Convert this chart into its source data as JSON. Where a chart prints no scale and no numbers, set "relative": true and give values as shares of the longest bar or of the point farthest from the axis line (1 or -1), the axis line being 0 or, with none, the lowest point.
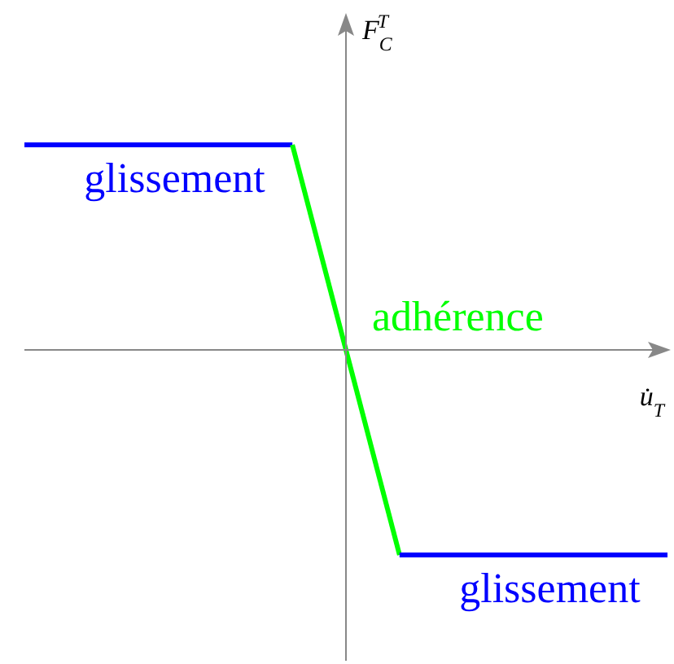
{
  "chart_data": {
    "type": "line",
    "relative": true,
    "xlabel": "u̇$_{T}$",
    "ylabel": "F$_{C}$$^{T}$",
    "categories": [
      null,
      null,
      null,
      null,
      null,
      null,
      null,
      null,
      null,
      null,
      null,
      null,
      null
    ],
    "marker": "none",
    "series": [
      {
        "name": "glissement",
        "color": "#0000ff",
        "values": [
          1,
          1,
          1,
          1,
          1,
          1,
          null,
          null,
          null,
          null,
          null,
          null,
          null
        ]
      },
      {
        "name": "adhérence",
        "color": "#00ff00",
        "values": [
          null,
          null,
          null,
          null,
          null,
          1,
          0,
          -1,
          null,
          null,
          null,
          null,
          null
        ]
      },
      {
        "name": "glissement",
        "color": "#0000ff",
        "values": [
          null,
          null,
          null,
          null,
          null,
          null,
          null,
          -1,
          -1,
          -1,
          -1,
          -1,
          -1
        ]
      }
    ]
  }
}
